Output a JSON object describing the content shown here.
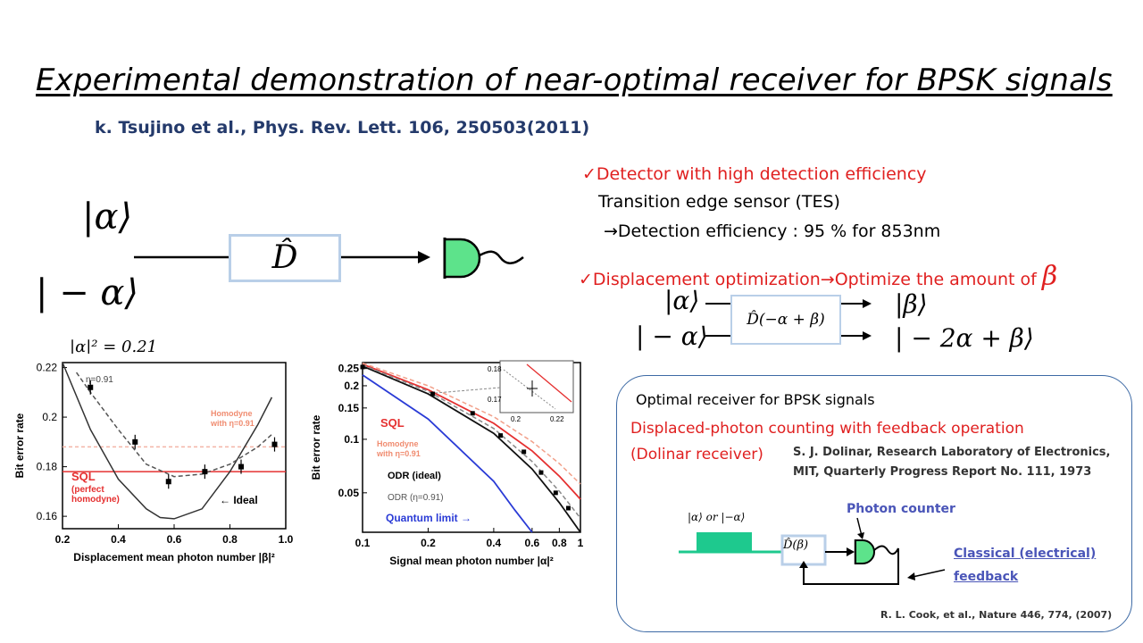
{
  "title": "Experimental demonstration of  near-optimal receiver for BPSK signals",
  "citation": "k. Tsujino et al., Phys. Rev. Lett. 106, 250503(2011)",
  "left_diagram": {
    "ket_alpha": "|α⟩",
    "ket_minus_alpha": "| − α⟩",
    "operator": "D̂"
  },
  "bullets": {
    "b1_check": "✓",
    "b1_text": "Detector with high detection efficiency",
    "b1_sub1": "Transition edge sensor (TES)",
    "b1_sub2": "→Detection efficiency : 95 % for 853nm",
    "b2_check": "✓",
    "b2_text": "Displacement optimization",
    "b2_arrow_text": "→Optimize the amount of",
    "b2_symbol": "β"
  },
  "displacement_diagram": {
    "in1": "|α⟩",
    "in2": "| − α⟩",
    "op": "D̂(−α + β)",
    "out1": "|β⟩",
    "out2": "| − 2α + β⟩"
  },
  "panel": {
    "heading": "Optimal receiver for BPSK signals",
    "red_line1": "Displaced-photon counting with feedback operation",
    "red_line2": "(Dolinar receiver)",
    "dolinar_cite1": "S. J. Dolinar, Research Laboratory of Electronics,",
    "dolinar_cite2": "MIT, Quarterly Progress Report No. 111, 1973",
    "input_label": "|α⟩ or |−α⟩",
    "op_label": "D̂(β)",
    "photon_counter": "Photon counter",
    "feedback1": "Classical (electrical)",
    "feedback2": "feedback",
    "cook_cite": "R. L. Cook, et al., Nature 446, 774, (2007)"
  },
  "plot1": {
    "header": "|α|² = 0.21",
    "ylabel": "Bit error rate",
    "xlabel": "Displacement mean photon number |β|²",
    "yticks": [
      "0.22",
      "0.2",
      "0.18",
      "0.16"
    ],
    "xticks": [
      "0.2",
      "0.4",
      "0.6",
      "0.8",
      "1.0"
    ],
    "eta_label": "η=0.91",
    "homodyne_label1": "Homodyne",
    "homodyne_label2": "with η=0.91",
    "sql_label": "SQL",
    "sql_sub1": "(perfect",
    "sql_sub2": "homodyne)",
    "ideal_label": "← Ideal"
  },
  "plot2": {
    "ylabel": "Bit error rate",
    "xlabel": "Signal mean photon number |α|²",
    "yticks": [
      "0.25",
      "0.2",
      "0.15",
      "0.1",
      "0.05"
    ],
    "xticks": [
      "0.1",
      "0.2",
      "0.4",
      "0.6",
      "0.8",
      "1"
    ],
    "sql_label": "SQL",
    "homodyne_label1": "Homodyne",
    "homodyne_label2": "with η=0.91",
    "odr_ideal": "ODR (ideal)",
    "odr_eta": "ODR (η=0.91)",
    "quantum_limit": "Quantum limit →",
    "inset_y1": "0.18",
    "inset_y2": "0.17",
    "inset_x1": "0.2",
    "inset_x2": "0.22"
  },
  "chart_data": [
    {
      "type": "scatter",
      "title": "|α|² = 0.21",
      "xlabel": "Displacement mean photon number |β|²",
      "ylabel": "Bit error rate",
      "xlim": [
        0.2,
        1.0
      ],
      "ylim": [
        0.155,
        0.222
      ],
      "series": [
        {
          "name": "Ideal",
          "x": [
            0.2,
            0.3,
            0.4,
            0.5,
            0.55,
            0.6,
            0.7,
            0.8,
            0.9,
            0.95
          ],
          "y": [
            0.222,
            0.195,
            0.175,
            0.163,
            0.1595,
            0.159,
            0.163,
            0.178,
            0.197,
            0.208
          ]
        },
        {
          "name": "η=0.91",
          "x": [
            0.25,
            0.3,
            0.4,
            0.5,
            0.6,
            0.7,
            0.8,
            0.9,
            0.95
          ],
          "y": [
            0.218,
            0.21,
            0.195,
            0.181,
            0.176,
            0.177,
            0.181,
            0.188,
            0.193
          ]
        },
        {
          "name": "data",
          "x": [
            0.3,
            0.46,
            0.58,
            0.71,
            0.84,
            0.96
          ],
          "y": [
            0.212,
            0.19,
            0.174,
            0.178,
            0.18,
            0.189
          ]
        },
        {
          "name": "SQL",
          "x": [
            0.2,
            1.0
          ],
          "y": [
            0.178,
            0.178
          ]
        },
        {
          "name": "Homodyne with η=0.91",
          "x": [
            0.2,
            1.0
          ],
          "y": [
            0.188,
            0.188
          ]
        }
      ]
    },
    {
      "type": "line",
      "xlabel": "Signal mean photon number |α|²",
      "ylabel": "Bit error rate",
      "xlim": [
        0.1,
        1.0
      ],
      "ylim": [
        0.03,
        0.27
      ],
      "xscale": "log",
      "yscale": "log",
      "series": [
        {
          "name": "SQL",
          "x": [
            0.1,
            0.2,
            0.4,
            0.6,
            0.8,
            1.0
          ],
          "y": [
            0.264,
            0.19,
            0.123,
            0.086,
            0.062,
            0.046
          ]
        },
        {
          "name": "Homodyne with η=0.91",
          "x": [
            0.1,
            0.2,
            0.4,
            0.6,
            0.8,
            1.0
          ],
          "y": [
            0.268,
            0.2,
            0.134,
            0.097,
            0.073,
            0.056
          ]
        },
        {
          "name": "ODR (ideal)",
          "x": [
            0.1,
            0.2,
            0.4,
            0.6,
            0.8,
            1.0
          ],
          "y": [
            0.258,
            0.18,
            0.108,
            0.068,
            0.044,
            0.03
          ]
        },
        {
          "name": "ODR (η=0.91)",
          "x": [
            0.1,
            0.2,
            0.4,
            0.6,
            0.8,
            1.0
          ],
          "y": [
            0.262,
            0.186,
            0.115,
            0.075,
            0.051,
            0.036
          ]
        },
        {
          "name": "Quantum limit",
          "x": [
            0.1,
            0.2,
            0.4,
            0.5,
            0.6
          ],
          "y": [
            0.23,
            0.13,
            0.058,
            0.04,
            0.03
          ]
        },
        {
          "name": "data",
          "x": [
            0.1,
            0.21,
            0.32,
            0.43,
            0.55,
            0.66,
            0.77,
            0.88
          ],
          "y": [
            0.255,
            0.18,
            0.14,
            0.105,
            0.085,
            0.065,
            0.05,
            0.041
          ]
        }
      ]
    }
  ]
}
